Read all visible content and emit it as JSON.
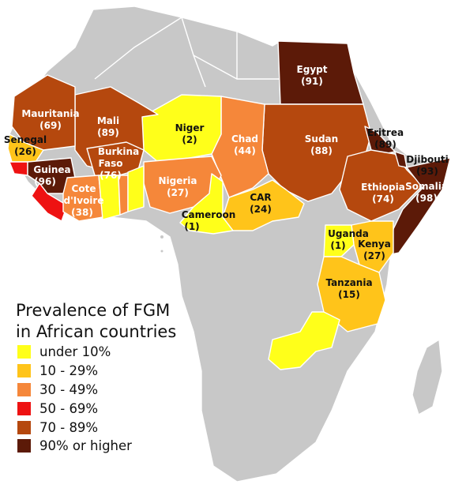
{
  "colors": {
    "background": "#ffffff",
    "no_data": "#c8c8c8",
    "border": "#ffffff",
    "under_10": "#ffff1a",
    "10_29": "#ffc41a",
    "30_49": "#f5873a",
    "50_69": "#ee1212",
    "70_89": "#b5480e",
    "90_plus": "#5c1a08"
  },
  "legend": {
    "title_line1": "Prevalence of FGM",
    "title_line2": "in African countries",
    "items": [
      {
        "label": "under 10%",
        "color": "#ffff1a"
      },
      {
        "label": "10 - 29%",
        "color": "#ffc41a"
      },
      {
        "label": "30 - 49%",
        "color": "#f5873a"
      },
      {
        "label": "50 - 69%",
        "color": "#ee1212"
      },
      {
        "label": "70 - 89%",
        "color": "#b5480e"
      },
      {
        "label": "90% or higher",
        "color": "#5c1a08"
      }
    ]
  },
  "countries": [
    {
      "name": "Egypt",
      "value": "(91)"
    },
    {
      "name": "Mauritania",
      "value": "(69)"
    },
    {
      "name": "Mali",
      "value": "(89)"
    },
    {
      "name": "Niger",
      "value": "(2)"
    },
    {
      "name": "Chad",
      "value": "(44)"
    },
    {
      "name": "Sudan",
      "value": "(88)"
    },
    {
      "name": "Eritrea",
      "value": "(89)"
    },
    {
      "name": "Djibouti",
      "value": "(93)"
    },
    {
      "name": "Senegal",
      "value": "(26)"
    },
    {
      "name": "Burkina",
      "name2": "Faso",
      "value": "(76)"
    },
    {
      "name": "Guinea",
      "value": "(96)"
    },
    {
      "name": "Cote",
      "name2": "d'Ivoire",
      "value": "(38)"
    },
    {
      "name": "Nigeria",
      "value": "(27)"
    },
    {
      "name": "Ethiopia",
      "value": "(74)"
    },
    {
      "name": "Somalia",
      "value": "(98)"
    },
    {
      "name": "CAR",
      "value": "(24)"
    },
    {
      "name": "Cameroon",
      "value": "(1)"
    },
    {
      "name": "Uganda",
      "value": "(1)"
    },
    {
      "name": "Kenya",
      "value": "(27)"
    },
    {
      "name": "Tanzania",
      "value": "(15)"
    }
  ]
}
